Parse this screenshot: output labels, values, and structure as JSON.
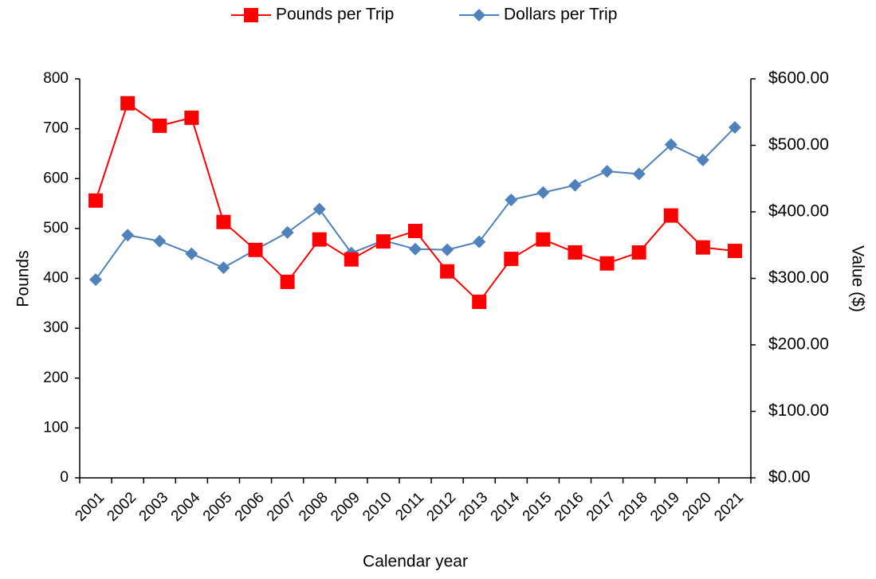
{
  "chart_data": {
    "type": "line",
    "categories": [
      "2001",
      "2002",
      "2003",
      "2004",
      "2005",
      "2006",
      "2007",
      "2008",
      "2009",
      "2010",
      "2011",
      "2012",
      "2013",
      "2014",
      "2015",
      "2016",
      "2017",
      "2018",
      "2019",
      "2020",
      "2021"
    ],
    "series": [
      {
        "name": "Pounds per Trip",
        "color": "#ff0000",
        "marker": "square",
        "values": [
          556,
          751,
          706,
          722,
          513,
          457,
          393,
          478,
          438,
          474,
          495,
          414,
          353,
          439,
          478,
          452,
          430,
          452,
          526,
          462,
          455
        ]
      },
      {
        "name": "Dollars per Trip",
        "color": "#4f81bd",
        "marker": "diamond",
        "axis": "y2",
        "values": [
          298,
          365,
          356,
          337,
          316,
          343,
          369,
          404,
          338,
          357,
          344,
          343,
          355,
          418,
          429,
          440,
          461,
          457,
          501,
          478,
          527
        ]
      }
    ],
    "x_label": "Calendar year",
    "y_label": "Pounds",
    "y2_label": "Value  ($)",
    "ylim": [
      0,
      800
    ],
    "yticks": [
      0,
      100,
      200,
      300,
      400,
      500,
      600,
      700,
      800
    ],
    "y2lim": [
      0,
      600
    ],
    "y2ticks": [
      {
        "value": 0,
        "label": "$0.00"
      },
      {
        "value": 100,
        "label": "$100.00"
      },
      {
        "value": 200,
        "label": "$200.00"
      },
      {
        "value": 300,
        "label": "$300.00"
      },
      {
        "value": 400,
        "label": "$400.00"
      },
      {
        "value": 500,
        "label": "$500.00"
      },
      {
        "value": 600,
        "label": "$600.00"
      }
    ],
    "legend": "top"
  }
}
